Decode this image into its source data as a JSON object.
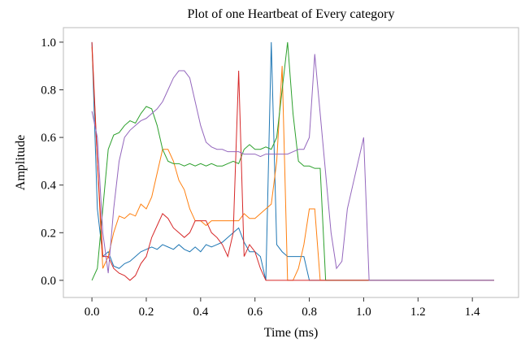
{
  "chart_data": {
    "type": "line",
    "title": "Plot of one Heartbeat of Every category",
    "xlabel": "Time (ms)",
    "ylabel": "Amplitude",
    "x": [
      0,
      0.02,
      0.04,
      0.06,
      0.08,
      0.1,
      0.12,
      0.14,
      0.16,
      0.18,
      0.2,
      0.22,
      0.24,
      0.26,
      0.28,
      0.3,
      0.32,
      0.34,
      0.36,
      0.38,
      0.4,
      0.42,
      0.44,
      0.46,
      0.48,
      0.5,
      0.52,
      0.54,
      0.56,
      0.58,
      0.6,
      0.62,
      0.64,
      0.66,
      0.68,
      0.7,
      0.72,
      0.74,
      0.76,
      0.78,
      0.8,
      0.82,
      0.84,
      0.86,
      0.88,
      0.9,
      0.92,
      0.94,
      0.96,
      0.98,
      1.0,
      1.02,
      1.04,
      1.06,
      1.08,
      1.1,
      1.12,
      1.14,
      1.16,
      1.18,
      1.2,
      1.22,
      1.24,
      1.26,
      1.28,
      1.3,
      1.32,
      1.34,
      1.36,
      1.38,
      1.4,
      1.42,
      1.44,
      1.46,
      1.48
    ],
    "series": [
      {
        "color": "#1f77b4",
        "values": [
          1.0,
          0.3,
          0.1,
          0.12,
          0.06,
          0.05,
          0.07,
          0.08,
          0.1,
          0.12,
          0.13,
          0.14,
          0.13,
          0.15,
          0.14,
          0.13,
          0.15,
          0.13,
          0.12,
          0.14,
          0.12,
          0.15,
          0.14,
          0.15,
          0.16,
          0.18,
          0.2,
          0.22,
          0.16,
          0.12,
          0.12,
          0.1,
          0.0,
          1.0,
          0.15,
          0.12,
          0.1,
          0.1,
          0.1,
          0.1,
          0.0,
          0,
          0,
          0,
          0,
          0,
          0,
          0,
          0,
          0,
          0,
          0,
          0,
          0,
          0,
          0,
          0,
          0,
          0,
          0,
          0,
          0,
          0,
          0,
          0,
          0,
          0,
          0,
          0,
          0,
          0,
          0,
          0,
          0,
          0
        ]
      },
      {
        "color": "#ff7f0e",
        "values": [
          0.98,
          0.5,
          0.05,
          0.1,
          0.2,
          0.27,
          0.26,
          0.28,
          0.27,
          0.32,
          0.3,
          0.35,
          0.45,
          0.55,
          0.55,
          0.5,
          0.42,
          0.38,
          0.3,
          0.25,
          0.25,
          0.23,
          0.25,
          0.25,
          0.25,
          0.25,
          0.25,
          0.25,
          0.28,
          0.26,
          0.26,
          0.28,
          0.3,
          0.32,
          0.5,
          0.9,
          0.0,
          0.0,
          0.05,
          0.15,
          0.3,
          0.3,
          0.0,
          0,
          0,
          0,
          0,
          0,
          0,
          0,
          0,
          0,
          0,
          0,
          0,
          0,
          0,
          0,
          0,
          0,
          0,
          0,
          0,
          0,
          0,
          0,
          0,
          0,
          0,
          0,
          0,
          0,
          0,
          0,
          0
        ]
      },
      {
        "color": "#2ca02c",
        "values": [
          0,
          0.05,
          0.3,
          0.55,
          0.61,
          0.62,
          0.65,
          0.67,
          0.66,
          0.7,
          0.73,
          0.72,
          0.65,
          0.55,
          0.5,
          0.49,
          0.49,
          0.48,
          0.49,
          0.48,
          0.49,
          0.48,
          0.49,
          0.48,
          0.48,
          0.49,
          0.5,
          0.49,
          0.55,
          0.57,
          0.55,
          0.55,
          0.56,
          0.55,
          0.6,
          0.8,
          1.0,
          0.7,
          0.5,
          0.48,
          0.48,
          0.47,
          0.47,
          0.0,
          0,
          0,
          0,
          0,
          0,
          0,
          0,
          0,
          0,
          0,
          0,
          0,
          0,
          0,
          0,
          0,
          0,
          0,
          0,
          0,
          0,
          0,
          0,
          0,
          0,
          0,
          0,
          0,
          0,
          0,
          0
        ]
      },
      {
        "color": "#d62728",
        "values": [
          1.0,
          0.5,
          0.1,
          0.1,
          0.05,
          0.03,
          0.02,
          0.0,
          0.02,
          0.07,
          0.1,
          0.18,
          0.23,
          0.28,
          0.26,
          0.22,
          0.2,
          0.18,
          0.2,
          0.25,
          0.25,
          0.25,
          0.2,
          0.18,
          0.15,
          0.1,
          0.2,
          0.88,
          0.1,
          0.15,
          0.12,
          0.05,
          0.0,
          0,
          0,
          0,
          0,
          0,
          0,
          0,
          0,
          0,
          0,
          0,
          0,
          0,
          0,
          0,
          0,
          0,
          0,
          0,
          0,
          0,
          0,
          0,
          0,
          0,
          0,
          0,
          0,
          0,
          0,
          0,
          0,
          0,
          0,
          0,
          0,
          0,
          0,
          0,
          0,
          0,
          0
        ]
      },
      {
        "color": "#9467bd",
        "values": [
          0.71,
          0.6,
          0.2,
          0.03,
          0.3,
          0.5,
          0.6,
          0.63,
          0.65,
          0.67,
          0.68,
          0.7,
          0.72,
          0.75,
          0.8,
          0.85,
          0.88,
          0.88,
          0.85,
          0.75,
          0.65,
          0.58,
          0.56,
          0.55,
          0.55,
          0.54,
          0.54,
          0.54,
          0.53,
          0.53,
          0.53,
          0.52,
          0.53,
          0.53,
          0.53,
          0.53,
          0.53,
          0.54,
          0.55,
          0.55,
          0.6,
          0.95,
          0.7,
          0.45,
          0.2,
          0.05,
          0.08,
          0.3,
          0.4,
          0.5,
          0.6,
          0.0,
          0,
          0,
          0,
          0,
          0,
          0,
          0,
          0,
          0,
          0,
          0,
          0,
          0,
          0,
          0,
          0,
          0,
          0,
          0,
          0,
          0,
          0,
          0
        ]
      }
    ],
    "xlim": [
      -0.105,
      1.57
    ],
    "ylim": [
      -0.072,
      1.061
    ],
    "xticks": [
      {
        "value": 0,
        "label": "0.0"
      },
      0.2,
      0.4,
      0.6,
      0.8,
      {
        "value": 1,
        "label": "1.0"
      },
      1.2,
      1.4
    ],
    "yticks": [
      {
        "value": 0,
        "label": "0.0"
      },
      0.2,
      0.4,
      0.6,
      0.8,
      {
        "value": 1,
        "label": "1.0"
      }
    ],
    "grid": false
  }
}
